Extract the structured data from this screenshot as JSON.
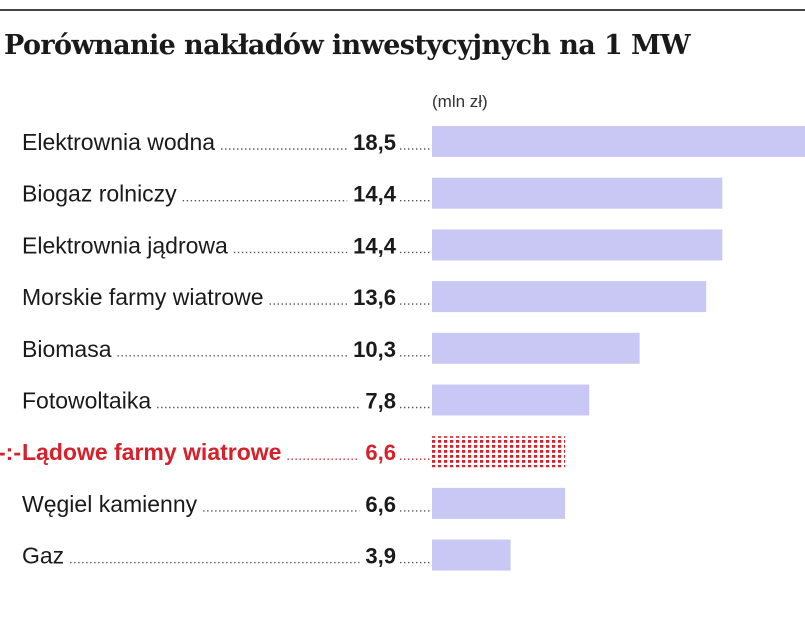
{
  "chart_data": {
    "type": "bar",
    "orientation": "horizontal",
    "title": "Porównanie nakładów inwestycyjnych na 1 MW",
    "unit_label": "(mln zł)",
    "categories": [
      "Elektrownia wodna",
      "Biogaz rolniczy",
      "Elektrownia jądrowa",
      "Morskie farmy wiatrowe",
      "Biomasa",
      "Fotowoltaika",
      "Lądowe farmy wiatrowe",
      "Węgiel kamienny",
      "Gaz"
    ],
    "values": [
      18.5,
      14.4,
      14.4,
      13.6,
      10.3,
      7.8,
      6.6,
      6.6,
      3.9
    ],
    "value_labels": [
      "18,5",
      "14,4",
      "14,4",
      "13,6",
      "10,3",
      "7,8",
      "6,6",
      "6,6",
      "3,9"
    ],
    "highlight_index": 6,
    "highlight_marker": "-:-",
    "xlim": [
      0,
      18.5
    ],
    "grid": false,
    "legend": "none"
  },
  "colors": {
    "bar": "#c9c8f5",
    "highlight": "#d6202a",
    "text": "#1a1a1a",
    "rule": "#444444"
  }
}
